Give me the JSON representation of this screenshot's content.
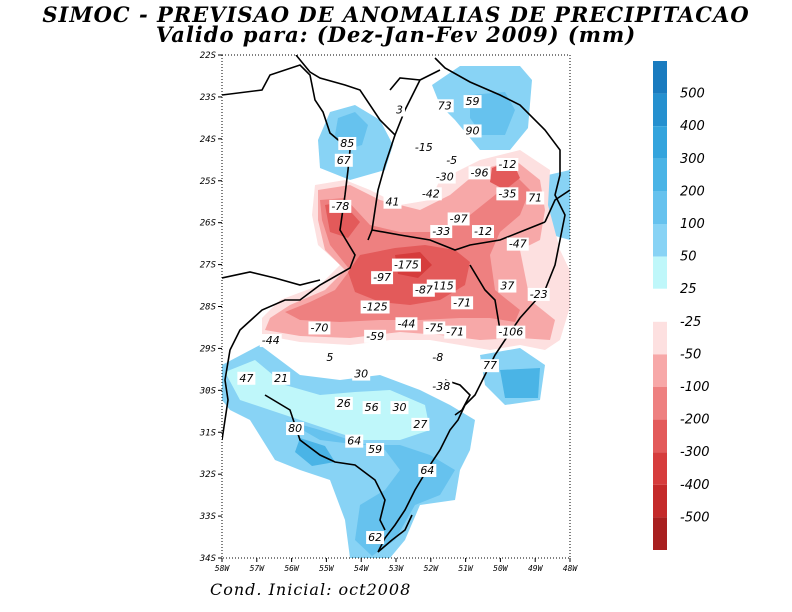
{
  "title_line1": "SIMOC - PREVISAO DE ANOMALIAS DE PRECIPITACAO",
  "title_line2": "Valido para: (Dez-Jan-Fev 2009) (mm)",
  "footer": "Cond. Inicial: oct2008",
  "lat_labels": [
    "22S",
    "23S",
    "24S",
    "25S",
    "26S",
    "27S",
    "28S",
    "29S",
    "30S",
    "31S",
    "32S",
    "33S",
    "34S"
  ],
  "lon_labels": [
    "58W",
    "57W",
    "56W",
    "55W",
    "54W",
    "53W",
    "52W",
    "51W",
    "50W",
    "49W",
    "48W"
  ],
  "colorbar": [
    {
      "label": "500",
      "color": "#1a7bbf"
    },
    {
      "label": "400",
      "color": "#2590cf"
    },
    {
      "label": "300",
      "color": "#34a4dd"
    },
    {
      "label": "200",
      "color": "#4ab4e6"
    },
    {
      "label": "100",
      "color": "#66c2ee"
    },
    {
      "label": "50",
      "color": "#88d3f5"
    },
    {
      "label": "25",
      "color": "#bff7fa"
    },
    {
      "label": "-25",
      "color": "#ffffff"
    },
    {
      "label": "-50",
      "color": "#fde0e0"
    },
    {
      "label": "-100",
      "color": "#f7a8a8"
    },
    {
      "label": "-200",
      "color": "#ee8080"
    },
    {
      "label": "-300",
      "color": "#e35a5a"
    },
    {
      "label": "-400",
      "color": "#d63c3c"
    },
    {
      "label": "-500",
      "color": "#c42a2a"
    },
    {
      "label": "",
      "color": "#a81f1f"
    }
  ],
  "values": [
    {
      "t": "3",
      "lon": -52.9,
      "lat": -23.3
    },
    {
      "t": "73",
      "lon": -51.6,
      "lat": -23.2
    },
    {
      "t": "59",
      "lon": -50.8,
      "lat": -23.1
    },
    {
      "t": "90",
      "lon": -50.8,
      "lat": -23.8
    },
    {
      "t": "85",
      "lon": -54.4,
      "lat": -24.1
    },
    {
      "t": "67",
      "lon": -54.5,
      "lat": -24.5
    },
    {
      "t": "-15",
      "lon": -52.2,
      "lat": -24.2
    },
    {
      "t": "-5",
      "lon": -51.4,
      "lat": -24.5
    },
    {
      "t": "-12",
      "lon": -49.8,
      "lat": -24.6
    },
    {
      "t": "-30",
      "lon": -51.6,
      "lat": -24.9
    },
    {
      "t": "-96",
      "lon": -50.6,
      "lat": -24.8
    },
    {
      "t": "-42",
      "lon": -52.0,
      "lat": -25.3
    },
    {
      "t": "-35",
      "lon": -49.8,
      "lat": -25.3
    },
    {
      "t": "71",
      "lon": -49.0,
      "lat": -25.4
    },
    {
      "t": "41",
      "lon": -53.1,
      "lat": -25.5
    },
    {
      "t": "-78",
      "lon": -54.6,
      "lat": -25.6
    },
    {
      "t": "-97",
      "lon": -51.2,
      "lat": -25.9
    },
    {
      "t": "-33",
      "lon": -51.7,
      "lat": -26.2
    },
    {
      "t": "-12",
      "lon": -50.5,
      "lat": -26.2
    },
    {
      "t": "-47",
      "lon": -49.5,
      "lat": -26.5
    },
    {
      "t": "-175",
      "lon": -52.7,
      "lat": -27.0
    },
    {
      "t": "-97",
      "lon": -53.4,
      "lat": -27.3
    },
    {
      "t": "-115",
      "lon": -51.7,
      "lat": -27.5
    },
    {
      "t": "-87",
      "lon": -52.2,
      "lat": -27.6
    },
    {
      "t": "37",
      "lon": -49.8,
      "lat": -27.5
    },
    {
      "t": "-23",
      "lon": -48.9,
      "lat": -27.7
    },
    {
      "t": "-125",
      "lon": -53.6,
      "lat": -28.0
    },
    {
      "t": "-71",
      "lon": -51.1,
      "lat": -27.9
    },
    {
      "t": "-70",
      "lon": -55.2,
      "lat": -28.5
    },
    {
      "t": "-59",
      "lon": -53.6,
      "lat": -28.7
    },
    {
      "t": "-44",
      "lon": -52.7,
      "lat": -28.4
    },
    {
      "t": "-75",
      "lon": -51.9,
      "lat": -28.5
    },
    {
      "t": "-71",
      "lon": -51.3,
      "lat": -28.6
    },
    {
      "t": "-106",
      "lon": -49.7,
      "lat": -28.6
    },
    {
      "t": "-44",
      "lon": -56.6,
      "lat": -28.8
    },
    {
      "t": "5",
      "lon": -54.9,
      "lat": -29.2
    },
    {
      "t": "-8",
      "lon": -51.8,
      "lat": -29.2
    },
    {
      "t": "77",
      "lon": -50.3,
      "lat": -29.4
    },
    {
      "t": "47",
      "lon": -57.3,
      "lat": -29.7
    },
    {
      "t": "21",
      "lon": -56.3,
      "lat": -29.7
    },
    {
      "t": "30",
      "lon": -54.0,
      "lat": -29.6
    },
    {
      "t": "-38",
      "lon": -51.7,
      "lat": -29.9
    },
    {
      "t": "26",
      "lon": -54.5,
      "lat": -30.3
    },
    {
      "t": "56",
      "lon": -53.7,
      "lat": -30.4
    },
    {
      "t": "30",
      "lon": -52.9,
      "lat": -30.4
    },
    {
      "t": "27",
      "lon": -52.3,
      "lat": -30.8
    },
    {
      "t": "80",
      "lon": -55.9,
      "lat": -30.9
    },
    {
      "t": "64",
      "lon": -54.2,
      "lat": -31.2
    },
    {
      "t": "59",
      "lon": -53.6,
      "lat": -31.4
    },
    {
      "t": "64",
      "lon": -52.1,
      "lat": -31.9
    },
    {
      "t": "62",
      "lon": -53.6,
      "lat": -33.5
    }
  ]
}
